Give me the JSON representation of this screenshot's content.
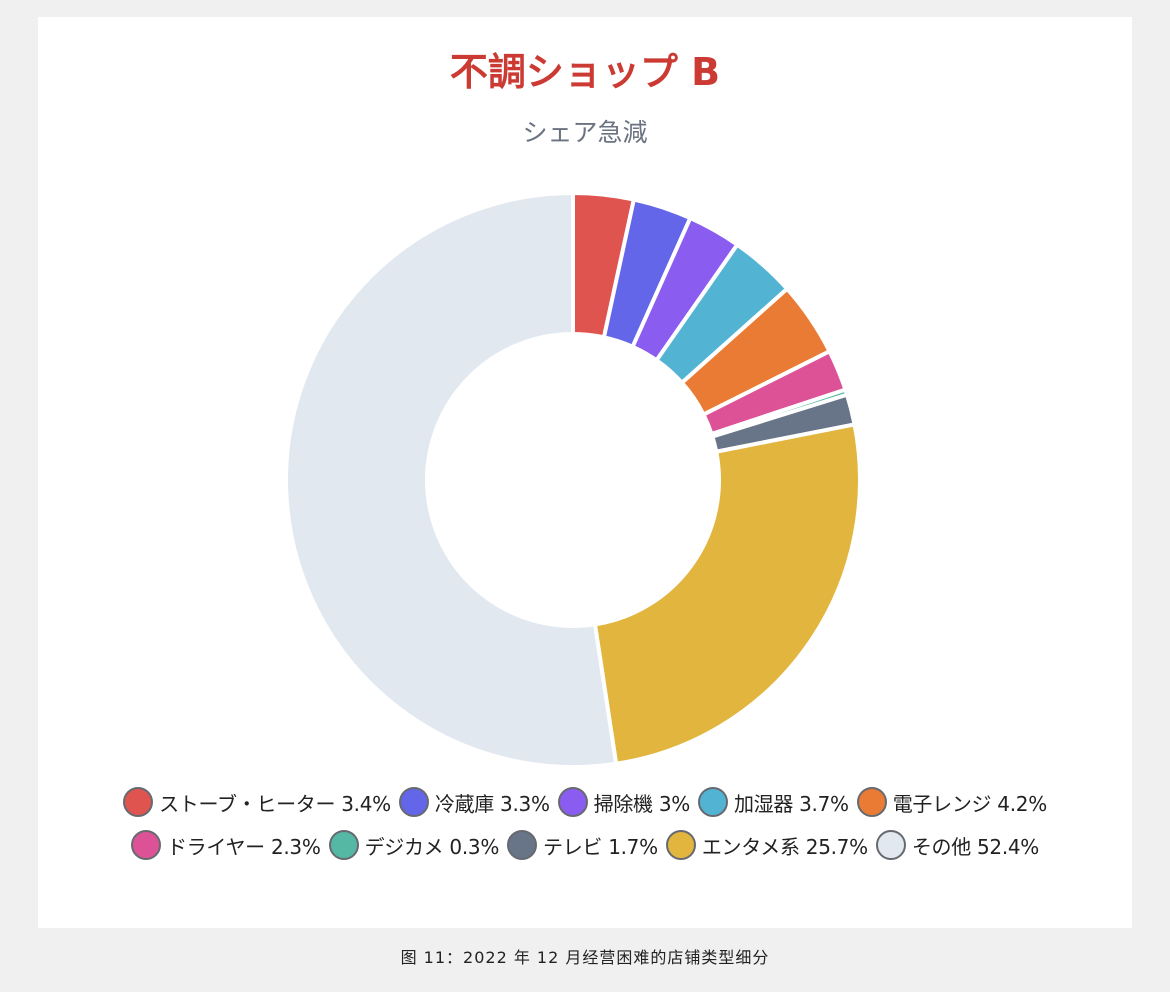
{
  "chart": {
    "title": "不調ショップ B",
    "subtitle": "シェア急減"
  },
  "caption": "图 11：2022 年 12 月经营困难的店铺类型细分",
  "legend": {
    "row1": [
      {
        "label": "ストーブ・ヒーター 3.4%",
        "color": "#e05450"
      },
      {
        "label": "冷蔵庫 3.3%",
        "color": "#6366e8"
      },
      {
        "label": "掃除機 3%",
        "color": "#8b5cf0"
      },
      {
        "label": "加湿器 3.7%",
        "color": "#52b4d2"
      },
      {
        "label": "電子レンジ 4.2%",
        "color": "#ea7b35"
      }
    ],
    "row2": [
      {
        "label": "ドライヤー 2.3%",
        "color": "#dd5297"
      },
      {
        "label": "デジカメ 0.3%",
        "color": "#55b8a4"
      },
      {
        "label": "テレビ 1.7%",
        "color": "#687588"
      },
      {
        "label": "エンタメ系 25.7%",
        "color": "#e2b53f"
      },
      {
        "label": "その他 52.4%",
        "color": "#e2e8f0"
      }
    ]
  },
  "chart_data": {
    "type": "pie",
    "variant": "donut",
    "title": "不調ショップ B",
    "subtitle": "シェア急減",
    "categories": [
      "ストーブ・ヒーター",
      "冷蔵庫",
      "掃除機",
      "加湿器",
      "電子レンジ",
      "ドライヤー",
      "デジカメ",
      "テレビ",
      "エンタメ系",
      "その他"
    ],
    "values": [
      3.4,
      3.3,
      3.0,
      3.7,
      4.2,
      2.3,
      0.3,
      1.7,
      25.7,
      52.4
    ],
    "colors": [
      "#e05450",
      "#6366e8",
      "#8b5cf0",
      "#52b4d2",
      "#ea7b35",
      "#dd5297",
      "#55b8a4",
      "#687588",
      "#e2b53f",
      "#e2e8f0"
    ],
    "unit": "%",
    "legend_position": "bottom",
    "start_angle_deg": 0,
    "direction": "clockwise"
  }
}
